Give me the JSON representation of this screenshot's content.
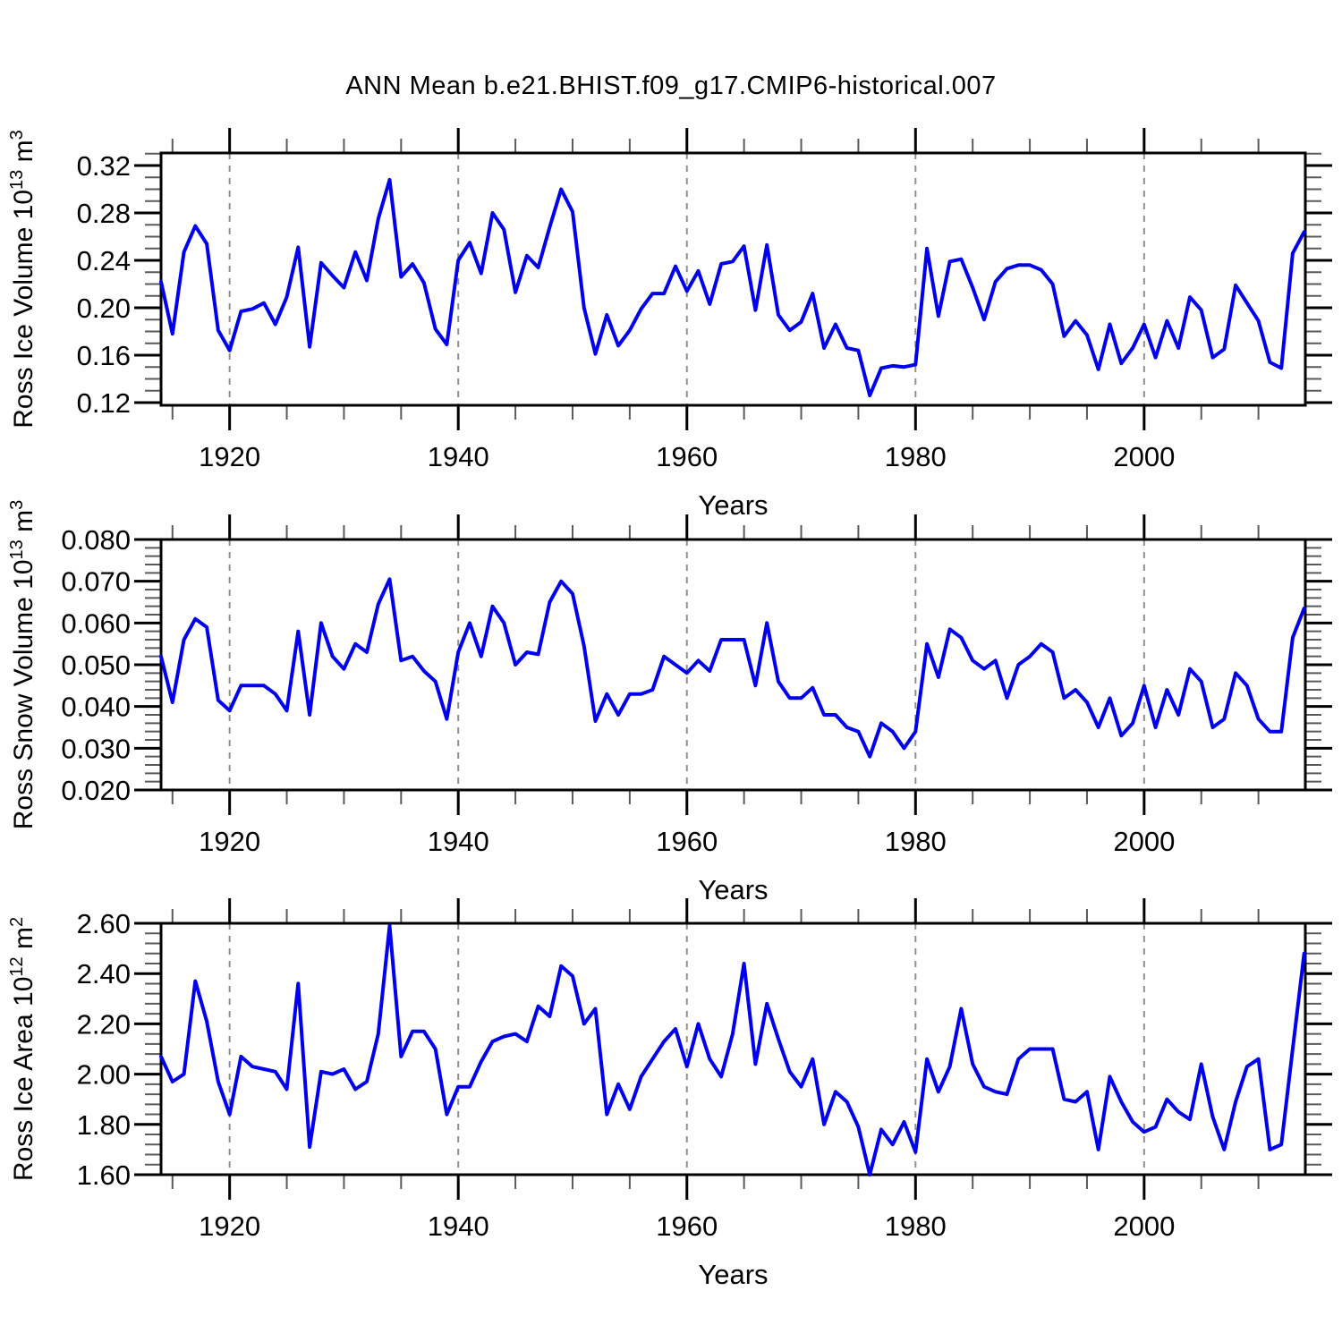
{
  "title": "ANN Mean b.e21.BHIST.f09_g17.CMIP6-historical.007",
  "colors": {
    "line": "#0000ee",
    "grid": "#909090",
    "axis": "#000000",
    "minor_tick": "#5a5a5a",
    "background": "#ffffff"
  },
  "x_axis": {
    "label": "Years",
    "xlim": [
      1914,
      2014.1
    ],
    "major_ticks": [
      1920,
      1940,
      1960,
      1980,
      2000
    ],
    "major_tick_labels": [
      "1920",
      "1940",
      "1960",
      "1980",
      "2000"
    ],
    "minor_step": 5,
    "years": [
      1914,
      1915,
      1916,
      1917,
      1918,
      1919,
      1920,
      1921,
      1922,
      1923,
      1924,
      1925,
      1926,
      1927,
      1928,
      1929,
      1930,
      1931,
      1932,
      1933,
      1934,
      1935,
      1936,
      1937,
      1938,
      1939,
      1940,
      1941,
      1942,
      1943,
      1944,
      1945,
      1946,
      1947,
      1948,
      1949,
      1950,
      1951,
      1952,
      1953,
      1954,
      1955,
      1956,
      1957,
      1958,
      1959,
      1960,
      1961,
      1962,
      1963,
      1964,
      1965,
      1966,
      1967,
      1968,
      1969,
      1970,
      1971,
      1972,
      1973,
      1974,
      1975,
      1976,
      1977,
      1978,
      1979,
      1980,
      1981,
      1982,
      1983,
      1984,
      1985,
      1986,
      1987,
      1988,
      1989,
      1990,
      1991,
      1992,
      1993,
      1994,
      1995,
      1996,
      1997,
      1998,
      1999,
      2000,
      2001,
      2002,
      2003,
      2004,
      2005,
      2006,
      2007,
      2008,
      2009,
      2010,
      2011,
      2012,
      2013,
      2014
    ]
  },
  "chart_data": [
    {
      "type": "line",
      "name": "ross-ice-volume",
      "ylabel": "Ross Ice Volume 10^13 m^3",
      "ylabel_parts": [
        {
          "t": "Ross Ice Volume 10"
        },
        {
          "t": "13",
          "sup": true
        },
        {
          "t": " m"
        },
        {
          "t": "3",
          "sup": true
        }
      ],
      "ylim": [
        0.1177,
        0.3306
      ],
      "ytick_values": [
        0.12,
        0.16,
        0.2,
        0.24,
        0.28,
        0.32
      ],
      "ytick_labels": [
        "0.12",
        "0.16",
        "0.20",
        "0.24",
        "0.28",
        "0.32"
      ],
      "y_minor_step": 0.01,
      "xlabel": "Years",
      "values": [
        0.222,
        0.178,
        0.247,
        0.269,
        0.254,
        0.181,
        0.164,
        0.197,
        0.199,
        0.204,
        0.186,
        0.209,
        0.251,
        0.167,
        0.238,
        0.227,
        0.217,
        0.247,
        0.223,
        0.275,
        0.308,
        0.226,
        0.237,
        0.221,
        0.182,
        0.169,
        0.24,
        0.255,
        0.229,
        0.28,
        0.266,
        0.213,
        0.244,
        0.234,
        0.268,
        0.3,
        0.281,
        0.2,
        0.161,
        0.194,
        0.168,
        0.181,
        0.199,
        0.212,
        0.212,
        0.235,
        0.214,
        0.231,
        0.203,
        0.237,
        0.239,
        0.252,
        0.198,
        0.253,
        0.194,
        0.181,
        0.188,
        0.212,
        0.166,
        0.186,
        0.166,
        0.164,
        0.126,
        0.149,
        0.151,
        0.15,
        0.152,
        0.25,
        0.193,
        0.239,
        0.241,
        0.217,
        0.19,
        0.222,
        0.233,
        0.236,
        0.236,
        0.232,
        0.22,
        0.176,
        0.189,
        0.177,
        0.148,
        0.186,
        0.153,
        0.166,
        0.186,
        0.158,
        0.189,
        0.166,
        0.209,
        0.198,
        0.158,
        0.165,
        0.219,
        0.204,
        0.189,
        0.154,
        0.149,
        0.246,
        0.264
      ]
    },
    {
      "type": "line",
      "name": "ross-snow-volume",
      "ylabel": "Ross Snow Volume 10^13 m^3",
      "ylabel_parts": [
        {
          "t": "Ross Snow Volume 10"
        },
        {
          "t": "13",
          "sup": true
        },
        {
          "t": " m"
        },
        {
          "t": "3",
          "sup": true
        }
      ],
      "ylim": [
        0.02,
        0.08
      ],
      "ytick_values": [
        0.02,
        0.03,
        0.04,
        0.05,
        0.06,
        0.07,
        0.08
      ],
      "ytick_labels": [
        "0.020",
        "0.030",
        "0.040",
        "0.050",
        "0.060",
        "0.070",
        "0.080"
      ],
      "y_minor_step": 0.002,
      "xlabel": "Years",
      "values": [
        0.052,
        0.041,
        0.056,
        0.061,
        0.059,
        0.0415,
        0.039,
        0.045,
        0.045,
        0.045,
        0.043,
        0.039,
        0.058,
        0.038,
        0.06,
        0.052,
        0.049,
        0.055,
        0.053,
        0.0645,
        0.0705,
        0.051,
        0.052,
        0.0485,
        0.046,
        0.037,
        0.053,
        0.06,
        0.052,
        0.064,
        0.06,
        0.05,
        0.053,
        0.0525,
        0.065,
        0.07,
        0.067,
        0.0545,
        0.0365,
        0.043,
        0.038,
        0.043,
        0.043,
        0.044,
        0.052,
        0.05,
        0.048,
        0.051,
        0.0485,
        0.056,
        0.056,
        0.056,
        0.045,
        0.06,
        0.046,
        0.042,
        0.042,
        0.0445,
        0.038,
        0.038,
        0.035,
        0.034,
        0.028,
        0.036,
        0.034,
        0.03,
        0.034,
        0.055,
        0.047,
        0.0585,
        0.0565,
        0.051,
        0.049,
        0.051,
        0.042,
        0.05,
        0.052,
        0.055,
        0.053,
        0.042,
        0.044,
        0.041,
        0.035,
        0.042,
        0.033,
        0.036,
        0.045,
        0.035,
        0.044,
        0.038,
        0.049,
        0.046,
        0.035,
        0.037,
        0.048,
        0.045,
        0.037,
        0.034,
        0.034,
        0.0565,
        0.0635
      ]
    },
    {
      "type": "line",
      "name": "ross-ice-area",
      "ylabel": "Ross Ice Area 10^12 m^2",
      "ylabel_parts": [
        {
          "t": "Ross Ice Area 10"
        },
        {
          "t": "12",
          "sup": true
        },
        {
          "t": " m"
        },
        {
          "t": "2",
          "sup": true
        }
      ],
      "ylim": [
        1.6,
        2.6
      ],
      "ytick_values": [
        1.6,
        1.8,
        2.0,
        2.2,
        2.4,
        2.6
      ],
      "ytick_labels": [
        "1.60",
        "1.80",
        "2.00",
        "2.20",
        "2.40",
        "2.60"
      ],
      "y_minor_step": 0.04,
      "xlabel": "Years",
      "values": [
        2.07,
        1.97,
        2.0,
        2.37,
        2.21,
        1.97,
        1.84,
        2.07,
        2.03,
        2.02,
        2.01,
        1.94,
        2.36,
        1.71,
        2.01,
        2.0,
        2.02,
        1.94,
        1.97,
        2.16,
        2.59,
        2.07,
        2.17,
        2.17,
        2.1,
        1.84,
        1.95,
        1.95,
        2.05,
        2.13,
        2.15,
        2.16,
        2.13,
        2.27,
        2.23,
        2.43,
        2.39,
        2.2,
        2.26,
        1.84,
        1.96,
        1.86,
        1.99,
        2.06,
        2.13,
        2.18,
        2.03,
        2.2,
        2.06,
        1.99,
        2.16,
        2.44,
        2.04,
        2.28,
        2.14,
        2.01,
        1.95,
        2.06,
        1.8,
        1.93,
        1.89,
        1.79,
        1.6,
        1.78,
        1.72,
        1.81,
        1.69,
        2.06,
        1.93,
        2.03,
        2.26,
        2.04,
        1.95,
        1.93,
        1.92,
        2.06,
        2.1,
        2.1,
        2.1,
        1.9,
        1.89,
        1.93,
        1.7,
        1.99,
        1.89,
        1.81,
        1.77,
        1.79,
        1.9,
        1.85,
        1.82,
        2.04,
        1.83,
        1.7,
        1.89,
        2.03,
        2.06,
        1.7,
        1.72,
        2.1,
        2.48
      ]
    }
  ]
}
